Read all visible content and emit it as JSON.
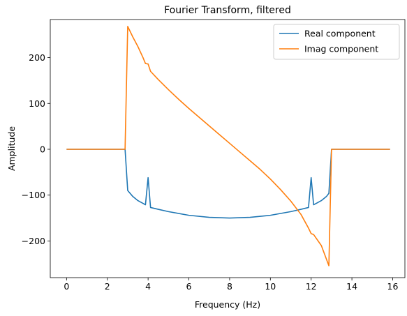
{
  "chart_data": {
    "type": "line",
    "title": "Fourier Transform, filtered",
    "xlabel": "Frequency (Hz)",
    "ylabel": "Amplitude",
    "xlim": [
      -0.8,
      16.6
    ],
    "ylim": [
      -280,
      283
    ],
    "xticks": [
      0,
      2,
      4,
      6,
      8,
      10,
      12,
      14,
      16
    ],
    "yticks": [
      -200,
      -100,
      0,
      100,
      200
    ],
    "grid": false,
    "legend": "top-right",
    "series": [
      {
        "name": "Real component",
        "color": "#1f77b4",
        "points": [
          [
            0,
            0
          ],
          [
            2.87,
            0
          ],
          [
            3.0,
            -90
          ],
          [
            3.25,
            -103
          ],
          [
            3.5,
            -112
          ],
          [
            3.75,
            -118
          ],
          [
            3.87,
            -121
          ],
          [
            4.0,
            -62
          ],
          [
            4.12,
            -127
          ],
          [
            4.5,
            -131
          ],
          [
            5.0,
            -136
          ],
          [
            6.0,
            -144
          ],
          [
            7.0,
            -148.5
          ],
          [
            8.0,
            -150
          ],
          [
            9.0,
            -148.5
          ],
          [
            10.0,
            -144
          ],
          [
            11.0,
            -136
          ],
          [
            11.5,
            -131
          ],
          [
            11.87,
            -127
          ],
          [
            12.0,
            -62
          ],
          [
            12.12,
            -121
          ],
          [
            12.25,
            -118
          ],
          [
            12.5,
            -112
          ],
          [
            12.75,
            -103
          ],
          [
            12.87,
            -96
          ],
          [
            13.0,
            0
          ],
          [
            15.87,
            0
          ]
        ]
      },
      {
        "name": "Imag component",
        "color": "#ff7f0e",
        "points": [
          [
            0,
            0
          ],
          [
            2.87,
            0
          ],
          [
            3.0,
            268
          ],
          [
            3.25,
            245
          ],
          [
            3.5,
            224
          ],
          [
            3.75,
            200
          ],
          [
            3.87,
            187
          ],
          [
            4.0,
            186
          ],
          [
            4.12,
            170
          ],
          [
            4.5,
            152
          ],
          [
            5.0,
            130
          ],
          [
            5.5,
            109
          ],
          [
            6.0,
            89
          ],
          [
            6.5,
            70
          ],
          [
            7.0,
            51
          ],
          [
            7.5,
            32
          ],
          [
            8.0,
            13
          ],
          [
            8.5,
            -6
          ],
          [
            9.0,
            -25
          ],
          [
            9.5,
            -44
          ],
          [
            10.0,
            -65
          ],
          [
            10.5,
            -88
          ],
          [
            11.0,
            -113
          ],
          [
            11.5,
            -142
          ],
          [
            11.87,
            -172
          ],
          [
            12.0,
            -184
          ],
          [
            12.12,
            -186
          ],
          [
            12.5,
            -210
          ],
          [
            12.87,
            -254
          ],
          [
            13.0,
            0
          ],
          [
            15.87,
            0
          ]
        ]
      }
    ]
  }
}
